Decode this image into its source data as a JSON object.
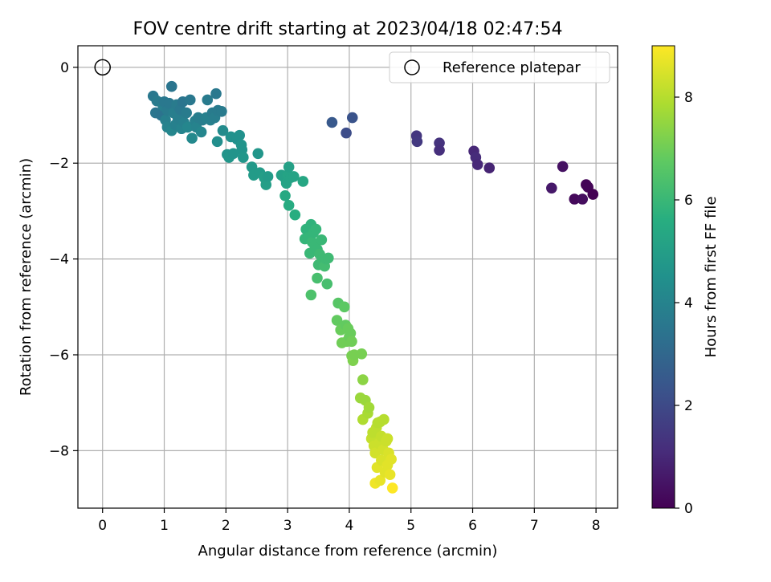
{
  "chart_data": {
    "type": "scatter",
    "title": "FOV centre drift starting at 2023/04/18 02:47:54",
    "xlabel": "Angular distance from reference (arcmin)",
    "ylabel": "Rotation from reference (arcmin)",
    "xlim": [
      -0.4,
      8.35
    ],
    "ylim": [
      -9.2,
      0.45
    ],
    "xticks": [
      0,
      1,
      2,
      3,
      4,
      5,
      6,
      7,
      8
    ],
    "xtick_labels": [
      "0",
      "1",
      "2",
      "3",
      "4",
      "5",
      "6",
      "7",
      "8"
    ],
    "yticks": [
      0,
      -2,
      -4,
      -6,
      -8
    ],
    "ytick_labels": [
      "0",
      "−2",
      "−4",
      "−6",
      "−8"
    ],
    "grid": true,
    "legend": {
      "location": "top-right",
      "entries": [
        "Reference platepar"
      ]
    },
    "reference_point": {
      "x": 0,
      "y": 0,
      "marker": "hollow circle"
    },
    "colorbar": {
      "label": "Hours from first FF file",
      "colormap": "viridis",
      "min": 0,
      "max": 9.0,
      "ticks": [
        0,
        2,
        4,
        6,
        8
      ],
      "tick_labels": [
        "0",
        "2",
        "4",
        "6",
        "8"
      ]
    },
    "series": [
      {
        "points": [
          {
            "x": 7.28,
            "y": -2.52,
            "c": 0.6
          },
          {
            "x": 7.46,
            "y": -2.07,
            "c": 0.4
          },
          {
            "x": 7.65,
            "y": -2.75,
            "c": 0.2
          },
          {
            "x": 7.78,
            "y": -2.75,
            "c": 0.3
          },
          {
            "x": 7.84,
            "y": -2.45,
            "c": 0.1
          },
          {
            "x": 7.87,
            "y": -2.5,
            "c": 0.1
          },
          {
            "x": 7.95,
            "y": -2.65,
            "c": 0.0
          },
          {
            "x": 6.02,
            "y": -1.75,
            "c": 1.0
          },
          {
            "x": 6.05,
            "y": -1.88,
            "c": 1.1
          },
          {
            "x": 6.08,
            "y": -2.03,
            "c": 1.0
          },
          {
            "x": 6.27,
            "y": -2.1,
            "c": 0.9
          },
          {
            "x": 5.09,
            "y": -1.43,
            "c": 1.4
          },
          {
            "x": 5.1,
            "y": -1.55,
            "c": 1.5
          },
          {
            "x": 5.46,
            "y": -1.58,
            "c": 1.3
          },
          {
            "x": 5.46,
            "y": -1.73,
            "c": 1.2
          },
          {
            "x": 3.72,
            "y": -1.15,
            "c": 2.5
          },
          {
            "x": 3.95,
            "y": -1.37,
            "c": 2.1
          },
          {
            "x": 4.05,
            "y": -1.05,
            "c": 2.3
          },
          {
            "x": 0.82,
            "y": -0.6,
            "c": 3.6
          },
          {
            "x": 0.86,
            "y": -0.95,
            "c": 3.5
          },
          {
            "x": 0.88,
            "y": -0.7,
            "c": 3.7
          },
          {
            "x": 0.95,
            "y": -1.0,
            "c": 3.4
          },
          {
            "x": 0.98,
            "y": -0.8,
            "c": 3.8
          },
          {
            "x": 1.0,
            "y": -0.72,
            "c": 3.6
          },
          {
            "x": 1.02,
            "y": -1.1,
            "c": 3.9
          },
          {
            "x": 1.05,
            "y": -0.9,
            "c": 3.7
          },
          {
            "x": 1.05,
            "y": -1.25,
            "c": 4.0
          },
          {
            "x": 1.08,
            "y": -0.75,
            "c": 3.6
          },
          {
            "x": 1.12,
            "y": -0.4,
            "c": 3.5
          },
          {
            "x": 1.12,
            "y": -1.32,
            "c": 4.1
          },
          {
            "x": 1.15,
            "y": -0.95,
            "c": 3.8
          },
          {
            "x": 1.18,
            "y": -1.2,
            "c": 3.9
          },
          {
            "x": 1.2,
            "y": -0.78,
            "c": 3.7
          },
          {
            "x": 1.22,
            "y": -1.05,
            "c": 3.8
          },
          {
            "x": 1.26,
            "y": -0.88,
            "c": 3.6
          },
          {
            "x": 1.28,
            "y": -1.28,
            "c": 4.0
          },
          {
            "x": 1.3,
            "y": -0.72,
            "c": 3.5
          },
          {
            "x": 1.32,
            "y": -1.15,
            "c": 3.9
          },
          {
            "x": 1.36,
            "y": -0.95,
            "c": 3.7
          },
          {
            "x": 1.38,
            "y": -1.25,
            "c": 4.1
          },
          {
            "x": 1.42,
            "y": -0.68,
            "c": 3.6
          },
          {
            "x": 1.45,
            "y": -1.48,
            "c": 4.2
          },
          {
            "x": 1.5,
            "y": -1.12,
            "c": 3.9
          },
          {
            "x": 1.52,
            "y": -1.25,
            "c": 4.0
          },
          {
            "x": 1.55,
            "y": -1.05,
            "c": 3.8
          },
          {
            "x": 1.6,
            "y": -1.35,
            "c": 4.1
          },
          {
            "x": 1.62,
            "y": -1.1,
            "c": 3.8
          },
          {
            "x": 1.68,
            "y": -1.05,
            "c": 3.9
          },
          {
            "x": 1.7,
            "y": -0.68,
            "c": 3.7
          },
          {
            "x": 1.75,
            "y": -1.1,
            "c": 3.9
          },
          {
            "x": 1.78,
            "y": -0.95,
            "c": 3.7
          },
          {
            "x": 1.82,
            "y": -1.05,
            "c": 3.8
          },
          {
            "x": 1.84,
            "y": -0.55,
            "c": 3.6
          },
          {
            "x": 1.86,
            "y": -1.55,
            "c": 4.4
          },
          {
            "x": 1.87,
            "y": -0.9,
            "c": 3.7
          },
          {
            "x": 1.93,
            "y": -0.92,
            "c": 3.7
          },
          {
            "x": 1.95,
            "y": -1.32,
            "c": 4.3
          },
          {
            "x": 2.02,
            "y": -1.82,
            "c": 4.6
          },
          {
            "x": 2.05,
            "y": -1.88,
            "c": 4.7
          },
          {
            "x": 2.08,
            "y": -1.45,
            "c": 4.5
          },
          {
            "x": 2.12,
            "y": -1.8,
            "c": 4.6
          },
          {
            "x": 2.18,
            "y": -1.5,
            "c": 4.5
          },
          {
            "x": 2.22,
            "y": -1.42,
            "c": 4.5
          },
          {
            "x": 2.25,
            "y": -1.62,
            "c": 4.6
          },
          {
            "x": 2.26,
            "y": -1.72,
            "c": 4.6
          },
          {
            "x": 2.28,
            "y": -1.88,
            "c": 4.7
          },
          {
            "x": 2.42,
            "y": -2.08,
            "c": 4.8
          },
          {
            "x": 2.45,
            "y": -2.25,
            "c": 4.9
          },
          {
            "x": 2.52,
            "y": -1.8,
            "c": 4.7
          },
          {
            "x": 2.55,
            "y": -2.2,
            "c": 4.9
          },
          {
            "x": 2.62,
            "y": -2.3,
            "c": 5.0
          },
          {
            "x": 2.65,
            "y": -2.45,
            "c": 5.0
          },
          {
            "x": 2.68,
            "y": -2.28,
            "c": 4.9
          },
          {
            "x": 2.9,
            "y": -2.25,
            "c": 5.1
          },
          {
            "x": 2.95,
            "y": -2.3,
            "c": 5.1
          },
          {
            "x": 2.96,
            "y": -2.68,
            "c": 5.4
          },
          {
            "x": 2.98,
            "y": -2.42,
            "c": 5.2
          },
          {
            "x": 3.0,
            "y": -2.25,
            "c": 5.2
          },
          {
            "x": 3.02,
            "y": -2.08,
            "c": 5.1
          },
          {
            "x": 3.02,
            "y": -2.88,
            "c": 5.5
          },
          {
            "x": 3.05,
            "y": -2.3,
            "c": 5.2
          },
          {
            "x": 3.1,
            "y": -2.28,
            "c": 5.2
          },
          {
            "x": 3.12,
            "y": -3.08,
            "c": 5.6
          },
          {
            "x": 3.25,
            "y": -2.38,
            "c": 5.3
          },
          {
            "x": 3.28,
            "y": -3.58,
            "c": 5.9
          },
          {
            "x": 3.3,
            "y": -3.38,
            "c": 5.8
          },
          {
            "x": 3.34,
            "y": -3.55,
            "c": 5.9
          },
          {
            "x": 3.36,
            "y": -3.88,
            "c": 6.0
          },
          {
            "x": 3.38,
            "y": -3.28,
            "c": 5.8
          },
          {
            "x": 3.38,
            "y": -4.75,
            "c": 6.4
          },
          {
            "x": 3.4,
            "y": -3.65,
            "c": 6.0
          },
          {
            "x": 3.42,
            "y": -3.45,
            "c": 5.9
          },
          {
            "x": 3.44,
            "y": -3.72,
            "c": 6.0
          },
          {
            "x": 3.46,
            "y": -3.38,
            "c": 5.9
          },
          {
            "x": 3.48,
            "y": -3.8,
            "c": 6.0
          },
          {
            "x": 3.48,
            "y": -4.4,
            "c": 6.3
          },
          {
            "x": 3.5,
            "y": -4.12,
            "c": 6.1
          },
          {
            "x": 3.52,
            "y": -3.9,
            "c": 6.1
          },
          {
            "x": 3.55,
            "y": -3.6,
            "c": 6.0
          },
          {
            "x": 3.56,
            "y": -4.02,
            "c": 6.1
          },
          {
            "x": 3.6,
            "y": -4.15,
            "c": 6.2
          },
          {
            "x": 3.62,
            "y": -4.0,
            "c": 6.1
          },
          {
            "x": 3.64,
            "y": -4.52,
            "c": 6.3
          },
          {
            "x": 3.66,
            "y": -3.98,
            "c": 6.1
          },
          {
            "x": 3.82,
            "y": -4.92,
            "c": 6.6
          },
          {
            "x": 3.8,
            "y": -5.28,
            "c": 6.8
          },
          {
            "x": 3.86,
            "y": -5.48,
            "c": 6.9
          },
          {
            "x": 3.88,
            "y": -5.75,
            "c": 7.0
          },
          {
            "x": 3.92,
            "y": -5.0,
            "c": 6.7
          },
          {
            "x": 3.94,
            "y": -5.38,
            "c": 6.8
          },
          {
            "x": 3.96,
            "y": -5.72,
            "c": 7.0
          },
          {
            "x": 3.98,
            "y": -5.45,
            "c": 6.9
          },
          {
            "x": 4.0,
            "y": -5.62,
            "c": 6.9
          },
          {
            "x": 4.02,
            "y": -5.55,
            "c": 6.9
          },
          {
            "x": 4.04,
            "y": -5.72,
            "c": 7.0
          },
          {
            "x": 4.04,
            "y": -6.02,
            "c": 7.1
          },
          {
            "x": 4.06,
            "y": -6.12,
            "c": 7.2
          },
          {
            "x": 4.08,
            "y": -6.0,
            "c": 7.1
          },
          {
            "x": 4.2,
            "y": -5.98,
            "c": 7.1
          },
          {
            "x": 4.22,
            "y": -6.52,
            "c": 7.4
          },
          {
            "x": 4.18,
            "y": -6.9,
            "c": 7.6
          },
          {
            "x": 4.22,
            "y": -7.35,
            "c": 7.9
          },
          {
            "x": 4.26,
            "y": -6.95,
            "c": 7.6
          },
          {
            "x": 4.3,
            "y": -7.22,
            "c": 7.8
          },
          {
            "x": 4.32,
            "y": -7.1,
            "c": 7.7
          },
          {
            "x": 4.36,
            "y": -7.75,
            "c": 8.2
          },
          {
            "x": 4.38,
            "y": -7.62,
            "c": 8.1
          },
          {
            "x": 4.4,
            "y": -7.9,
            "c": 8.3
          },
          {
            "x": 4.42,
            "y": -8.05,
            "c": 8.4
          },
          {
            "x": 4.42,
            "y": -8.68,
            "c": 8.8
          },
          {
            "x": 4.44,
            "y": -7.52,
            "c": 8.1
          },
          {
            "x": 4.45,
            "y": -8.35,
            "c": 8.6
          },
          {
            "x": 4.46,
            "y": -7.42,
            "c": 8.0
          },
          {
            "x": 4.48,
            "y": -7.85,
            "c": 8.3
          },
          {
            "x": 4.5,
            "y": -8.62,
            "c": 8.7
          },
          {
            "x": 4.5,
            "y": -7.4,
            "c": 8.0
          },
          {
            "x": 4.52,
            "y": -7.7,
            "c": 8.2
          },
          {
            "x": 4.52,
            "y": -8.2,
            "c": 8.5
          },
          {
            "x": 4.55,
            "y": -7.98,
            "c": 8.4
          },
          {
            "x": 4.56,
            "y": -7.35,
            "c": 8.0
          },
          {
            "x": 4.58,
            "y": -8.45,
            "c": 8.6
          },
          {
            "x": 4.6,
            "y": -7.8,
            "c": 8.3
          },
          {
            "x": 4.62,
            "y": -7.75,
            "c": 8.3
          },
          {
            "x": 4.62,
            "y": -8.3,
            "c": 8.6
          },
          {
            "x": 4.64,
            "y": -8.05,
            "c": 8.5
          },
          {
            "x": 4.66,
            "y": -8.5,
            "c": 8.7
          },
          {
            "x": 4.68,
            "y": -8.18,
            "c": 8.6
          },
          {
            "x": 4.7,
            "y": -8.78,
            "c": 9.0
          }
        ]
      }
    ]
  }
}
